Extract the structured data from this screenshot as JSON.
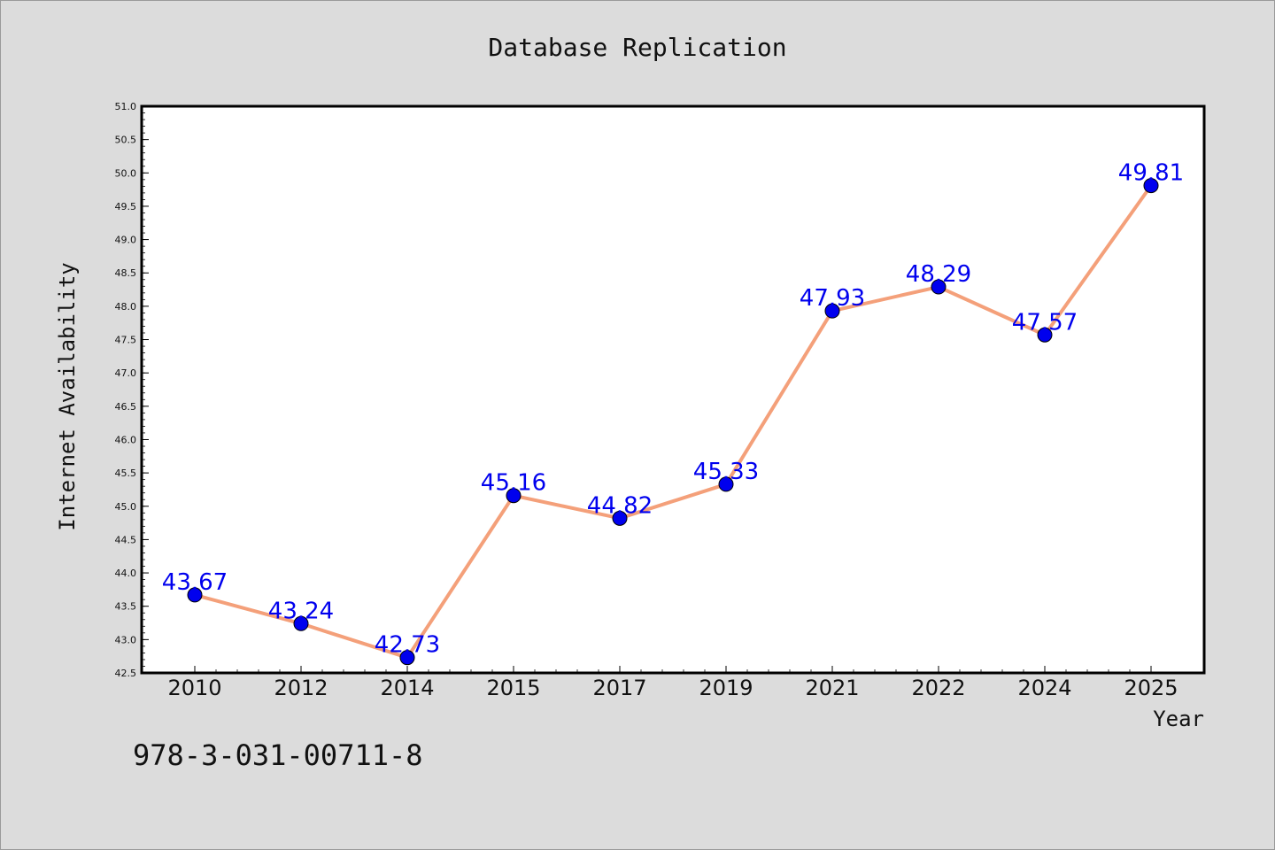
{
  "chart_data": {
    "type": "line",
    "title": "Database Replication",
    "xlabel": "Year",
    "ylabel": "Internet Availability",
    "categories": [
      "2010",
      "2012",
      "2014",
      "2015",
      "2017",
      "2019",
      "2021",
      "2022",
      "2024",
      "2025"
    ],
    "series": [
      {
        "values": [
          43.67,
          43.24,
          42.73,
          45.16,
          44.82,
          45.33,
          47.93,
          48.29,
          47.57,
          49.81
        ],
        "labels": [
          "43.67",
          "43.24",
          "42.73",
          "45.16",
          "44.82",
          "45.33",
          "47.93",
          "48.29",
          "47.57",
          "49.81"
        ],
        "line_color": "#f4a07a",
        "marker_color": "#0000ee"
      }
    ],
    "ylim": [
      42.5,
      51.0
    ],
    "yticks": [
      "42.5",
      "43.0",
      "43.5",
      "44.0",
      "44.5",
      "45.0",
      "45.5",
      "46.0",
      "46.5",
      "47.0",
      "47.5",
      "48.0",
      "48.5",
      "49.0",
      "49.5",
      "50.0",
      "50.5",
      "51.0"
    ],
    "grid": false,
    "legend": "none"
  },
  "footer": {
    "isbn": "978-3-031-00711-8"
  },
  "colors": {
    "background": "#dcdcdc",
    "plot_background": "#ffffff",
    "axis": "#000000"
  }
}
